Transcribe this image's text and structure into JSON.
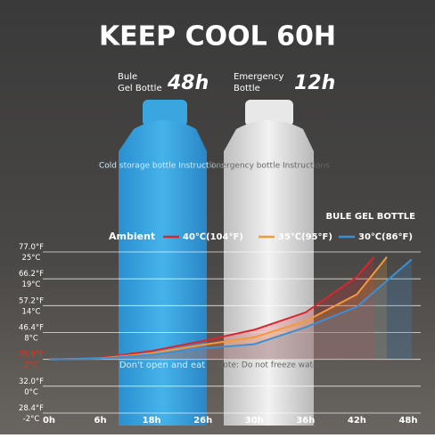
{
  "header": {
    "title": "KEEP COOL 60H",
    "left_label": [
      "Bule",
      "Gel Bottle"
    ],
    "left_badge": "48h",
    "right_label": [
      "Emergency",
      "Bottle"
    ],
    "right_badge": "12h"
  },
  "bottles": {
    "blue_heading": "Cold storage bottle Instructions",
    "blue_note": "Don't open and eat",
    "white_heading": "Emergency bottle Instructions",
    "white_note": "Note: Do not freeze water"
  },
  "chart_data": {
    "type": "line",
    "title": "BULE GEL BOTTLE",
    "legend_label": "Ambient",
    "xlim": [
      0,
      48
    ],
    "xticks": [
      {
        "value": 0,
        "label": "0h"
      },
      {
        "value": 6,
        "label": "6h"
      },
      {
        "value": 18,
        "label": "18h"
      },
      {
        "value": 26,
        "label": "26h"
      },
      {
        "value": 30,
        "label": "30h"
      },
      {
        "value": 36,
        "label": "36h"
      },
      {
        "value": 42,
        "label": "42h"
      },
      {
        "value": 48,
        "label": "48h"
      }
    ],
    "ylim": [
      28.4,
      77.0
    ],
    "yticks": [
      {
        "value": 77.0,
        "label": "77.0°F\n25°C"
      },
      {
        "value": 66.2,
        "label": "66.2°F\n19°C"
      },
      {
        "value": 57.2,
        "label": "57.2°F\n14°C"
      },
      {
        "value": 46.4,
        "label": "46.4°F\n8°C"
      },
      {
        "value": 35.6,
        "label": "35.6°F\n2°C",
        "color": "#e8321e"
      },
      {
        "value": 32.0,
        "label": "32.0°F\n0°C"
      },
      {
        "value": 28.4,
        "label": "28.4°F\n-2°C"
      }
    ],
    "grid": true,
    "series": [
      {
        "name": "40℃(104°F)",
        "color": "#d9262b",
        "x": [
          0,
          6,
          18,
          26,
          30,
          36,
          42,
          44
        ],
        "values": [
          35.6,
          36.2,
          39,
          43,
          47.5,
          54.5,
          67,
          75
        ]
      },
      {
        "name": "35℃(95°F)",
        "color": "#f39a3a",
        "x": [
          0,
          6,
          18,
          26,
          30,
          36,
          42,
          45.5
        ],
        "values": [
          35.6,
          36,
          38,
          41.5,
          44.5,
          51,
          61,
          75
        ]
      },
      {
        "name": "30℃(86°F)",
        "color": "#3b8fd6",
        "x": [
          0,
          6,
          18,
          26,
          30,
          36,
          42,
          48.4
        ],
        "values": [
          35.6,
          35.9,
          37.5,
          40,
          41.7,
          48.5,
          56.8,
          74
        ]
      }
    ]
  }
}
